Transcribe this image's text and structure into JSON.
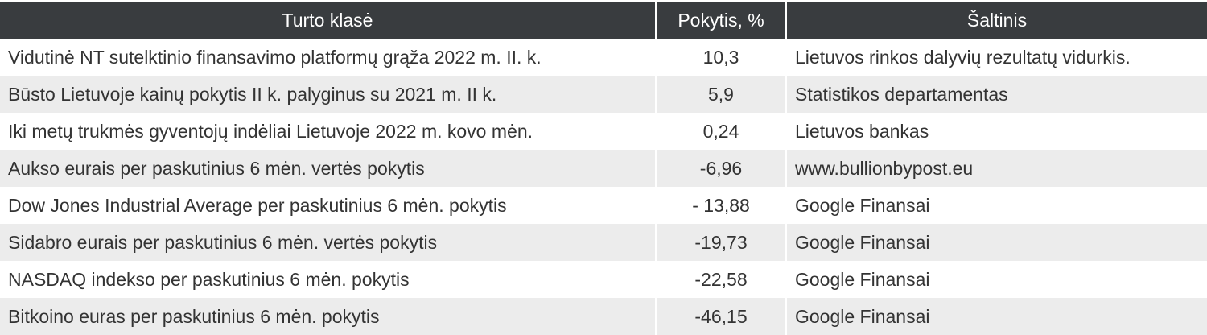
{
  "table": {
    "header": [
      "Turto klasė",
      "Pokytis, %",
      "Šaltinis"
    ],
    "rows": [
      [
        "Vidutinė NT sutelktinio finansavimo platformų grąža 2022 m. II. k.",
        "10,3",
        "Lietuvos rinkos dalyvių rezultatų vidurkis."
      ],
      [
        "Būsto Lietuvoje kainų pokytis II k. palyginus su 2021 m. II k.",
        "5,9",
        "Statistikos departamentas"
      ],
      [
        "Iki metų trukmės gyventojų indėliai Lietuvoje 2022 m. kovo mėn.",
        "0,24",
        "Lietuvos bankas"
      ],
      [
        "Aukso eurais per paskutinius 6 mėn. vertės pokytis",
        "-6,96",
        "www.bullionbypost.eu"
      ],
      [
        "Dow Jones Industrial Average per paskutinius 6 mėn. pokytis",
        "- 13,88",
        "Google Finansai"
      ],
      [
        "Sidabro eurais per paskutinius 6 mėn. vertės pokytis",
        "-19,73",
        "Google Finansai"
      ],
      [
        "NASDAQ indekso per paskutinius 6 mėn. pokytis",
        "-22,58",
        "Google Finansai"
      ],
      [
        "Bitkoino euras per paskutinius 6 mėn. pokytis",
        "-46,15",
        "Google Finansai"
      ]
    ]
  }
}
